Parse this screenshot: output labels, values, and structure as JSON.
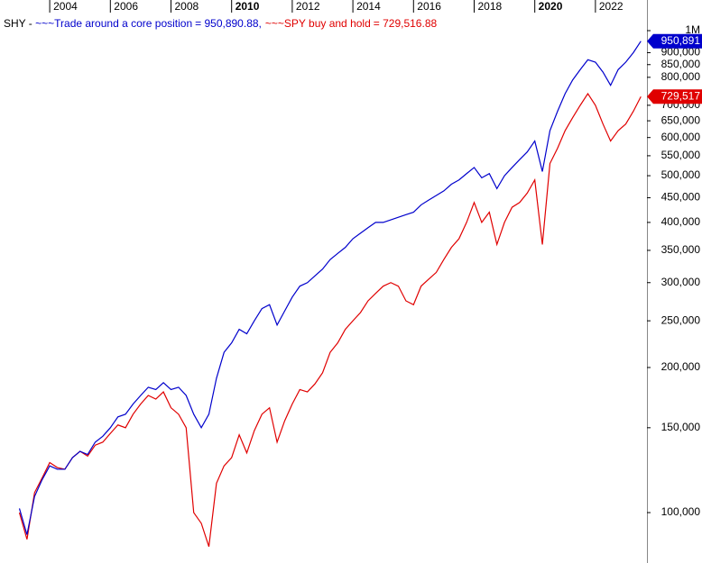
{
  "chart_data": {
    "type": "line",
    "title": "SHY - ",
    "x": [
      2003.0,
      2003.25,
      2003.5,
      2003.75,
      2004.0,
      2004.25,
      2004.5,
      2004.75,
      2005.0,
      2005.25,
      2005.5,
      2005.75,
      2006.0,
      2006.25,
      2006.5,
      2006.75,
      2007.0,
      2007.25,
      2007.5,
      2007.75,
      2008.0,
      2008.25,
      2008.5,
      2008.75,
      2009.0,
      2009.25,
      2009.5,
      2009.75,
      2010.0,
      2010.25,
      2010.5,
      2010.75,
      2011.0,
      2011.25,
      2011.5,
      2011.75,
      2012.0,
      2012.25,
      2012.5,
      2012.75,
      2013.0,
      2013.25,
      2013.5,
      2013.75,
      2014.0,
      2014.25,
      2014.5,
      2014.75,
      2015.0,
      2015.25,
      2015.5,
      2015.75,
      2016.0,
      2016.25,
      2016.5,
      2016.75,
      2017.0,
      2017.25,
      2017.5,
      2017.75,
      2018.0,
      2018.25,
      2018.5,
      2018.75,
      2019.0,
      2019.25,
      2019.5,
      2019.75,
      2020.0,
      2020.25,
      2020.5,
      2020.75,
      2021.0,
      2021.25,
      2021.5,
      2021.75,
      2022.0,
      2022.25,
      2022.5,
      2022.75,
      2023.0,
      2023.25,
      2023.5
    ],
    "series": [
      {
        "name": "~~~Trade around a core position",
        "legend_value": "= 950,890.88,",
        "flag_label": "950,891",
        "color": "#0000cc",
        "values": [
          102000,
          90000,
          108000,
          117000,
          125000,
          123000,
          123000,
          130000,
          134000,
          132000,
          140000,
          144000,
          150000,
          158000,
          160000,
          168000,
          175000,
          182000,
          180000,
          186000,
          180000,
          182000,
          175000,
          160000,
          150000,
          160000,
          190000,
          215000,
          225000,
          240000,
          235000,
          250000,
          265000,
          270000,
          245000,
          262000,
          280000,
          295000,
          300000,
          310000,
          320000,
          335000,
          345000,
          355000,
          370000,
          380000,
          390000,
          400000,
          400000,
          405000,
          410000,
          415000,
          420000,
          435000,
          445000,
          455000,
          465000,
          480000,
          490000,
          505000,
          520000,
          495000,
          505000,
          470000,
          500000,
          520000,
          540000,
          560000,
          590000,
          510000,
          620000,
          680000,
          740000,
          790000,
          830000,
          870000,
          860000,
          820000,
          770000,
          830000,
          860000,
          900000,
          950890.88
        ]
      },
      {
        "name": "~~~SPY buy and hold",
        "legend_value": "= 729,516.88",
        "flag_label": "729,517",
        "color": "#e00000",
        "values": [
          100000,
          88000,
          110000,
          118000,
          127000,
          124000,
          123000,
          130000,
          134000,
          131000,
          138000,
          140000,
          146000,
          152000,
          150000,
          160000,
          168000,
          175000,
          172000,
          178000,
          165000,
          160000,
          150000,
          100000,
          95000,
          85000,
          115000,
          125000,
          130000,
          145000,
          133000,
          148000,
          160000,
          165000,
          140000,
          155000,
          168000,
          180000,
          178000,
          185000,
          195000,
          215000,
          225000,
          240000,
          250000,
          260000,
          275000,
          285000,
          295000,
          300000,
          295000,
          275000,
          270000,
          295000,
          305000,
          315000,
          335000,
          355000,
          370000,
          400000,
          440000,
          400000,
          420000,
          360000,
          400000,
          430000,
          440000,
          460000,
          490000,
          360000,
          530000,
          570000,
          620000,
          660000,
          700000,
          740000,
          700000,
          640000,
          590000,
          620000,
          640000,
          680000,
          729516.88
        ]
      }
    ],
    "xlim": [
      2002.36,
      2023.7
    ],
    "xticks": [
      2004,
      2006,
      2008,
      2010,
      2012,
      2014,
      2016,
      2018,
      2020,
      2022
    ],
    "ylim": [
      78600,
      1157500
    ],
    "yscale": "log",
    "yticks": [
      {
        "value": 100000,
        "label": "100,000"
      },
      {
        "value": 150000,
        "label": "150,000"
      },
      {
        "value": 200000,
        "label": "200,000"
      },
      {
        "value": 250000,
        "label": "250,000"
      },
      {
        "value": 300000,
        "label": "300,000"
      },
      {
        "value": 350000,
        "label": "350,000"
      },
      {
        "value": 400000,
        "label": "400,000"
      },
      {
        "value": 450000,
        "label": "450,000"
      },
      {
        "value": 500000,
        "label": "500,000"
      },
      {
        "value": 550000,
        "label": "550,000"
      },
      {
        "value": 600000,
        "label": "600,000"
      },
      {
        "value": 650000,
        "label": "650,000"
      },
      {
        "value": 700000,
        "label": "700,000"
      },
      {
        "value": 800000,
        "label": "800,000"
      },
      {
        "value": 850000,
        "label": "850,000"
      },
      {
        "value": 900000,
        "label": "900,000"
      },
      {
        "value": 1000000,
        "label": "1M"
      }
    ],
    "grid": false
  }
}
